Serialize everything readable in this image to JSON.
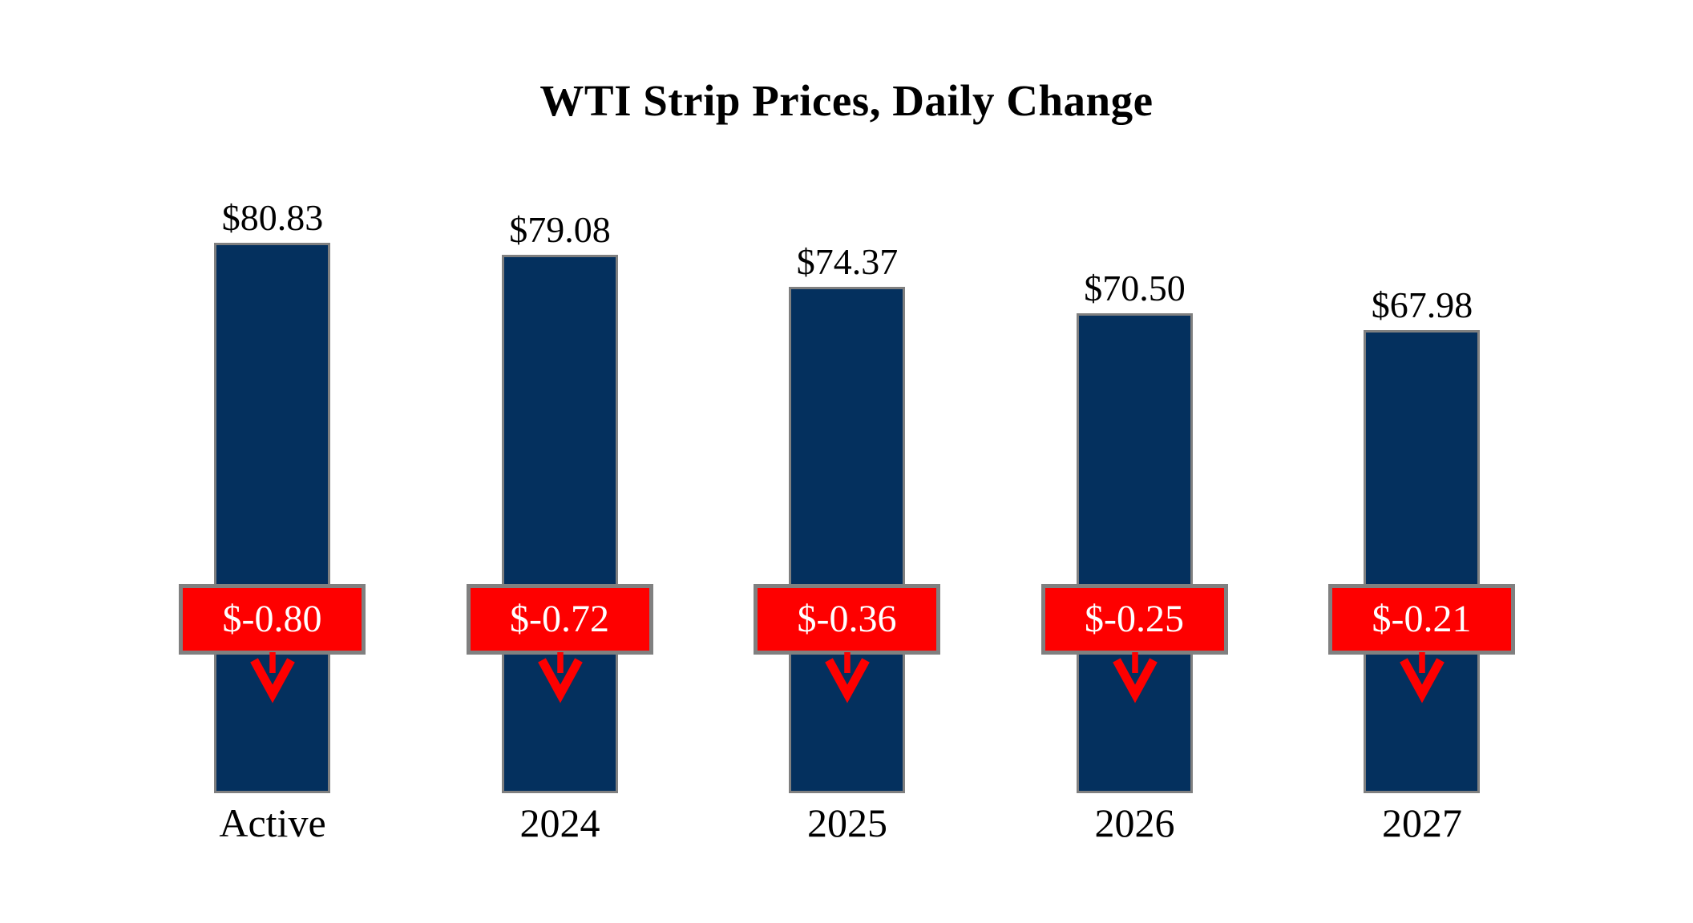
{
  "chart_data": {
    "type": "bar",
    "title": "WTI Strip Prices, Daily Change",
    "categories": [
      "Active",
      "2024",
      "2025",
      "2026",
      "2027"
    ],
    "series": [
      {
        "name": "WTI Strip Price",
        "values": [
          80.83,
          79.08,
          74.37,
          70.5,
          67.98
        ],
        "labels": [
          "$80.83",
          "$79.08",
          "$74.37",
          "$70.50",
          "$67.98"
        ]
      },
      {
        "name": "Daily Change",
        "values": [
          -0.8,
          -0.72,
          -0.36,
          -0.25,
          -0.21
        ],
        "labels": [
          "$-0.80",
          "$-0.72",
          "$-0.36",
          "$-0.25",
          "$-0.21"
        ]
      }
    ],
    "baseline": 0,
    "ylim": [
      0,
      85
    ],
    "axes_visible": false,
    "grid": false,
    "legend_position": "none",
    "annotations": "red badge with down arrow under each bar top shows daily change"
  },
  "colors": {
    "background": "#ffffff",
    "bar": "#04305e",
    "bar_border": "#808080",
    "badge_fill": "#fe0000",
    "badge_border": "#808080",
    "badge_text": "#ffffff",
    "arrow": "#fe0000",
    "title_text": "#000000",
    "label_text": "#000000"
  }
}
